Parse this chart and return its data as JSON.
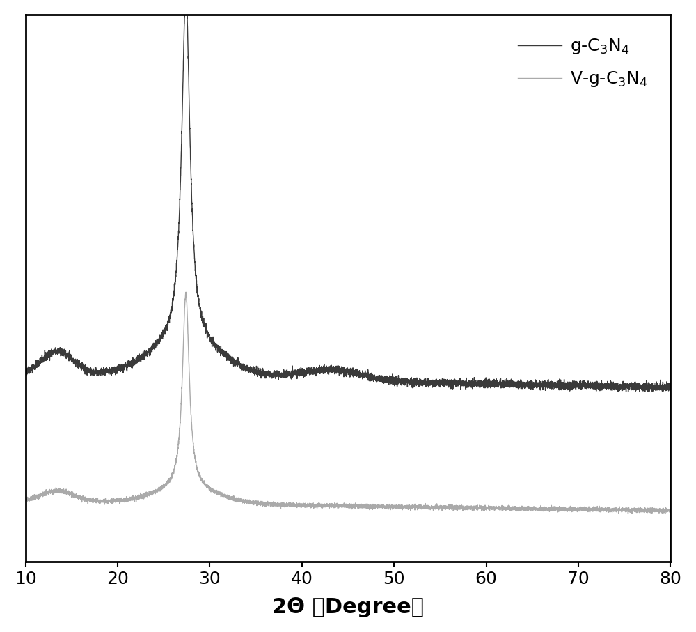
{
  "xlabel": "2Θ （Degree）",
  "xlabel_fontsize": 22,
  "xmin": 10,
  "xmax": 80,
  "xticks": [
    10,
    20,
    30,
    40,
    50,
    60,
    70,
    80
  ],
  "color_dark": "#3a3a3a",
  "color_light": "#aaaaaa",
  "legend_label_1": "g-C$_3$N$_4$",
  "legend_label_2": "V-g-C$_3$N$_4$",
  "legend_fontsize": 18,
  "tick_fontsize": 18,
  "background_color": "#ffffff",
  "linewidth": 1.0,
  "ylim_min": -1.2,
  "ylim_max": 3.8
}
